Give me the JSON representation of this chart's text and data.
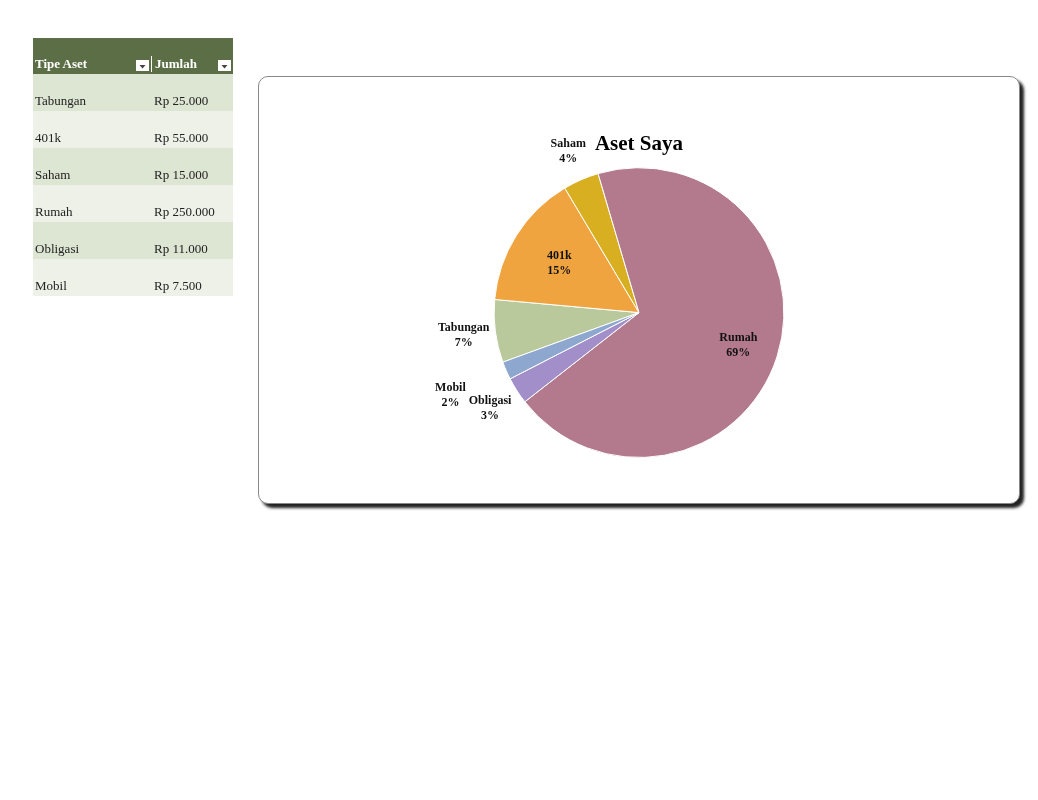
{
  "chart_data": [
    {
      "type": "other",
      "annotations": [
        "Tipe Aset",
        "Jumlah",
        "Tabungan",
        "Rp 25.000",
        "401k",
        "Rp 55.000",
        "Saham",
        "Rp 15.000",
        "Rumah",
        "Rp 250.000",
        "Obligasi",
        "Rp 11.000",
        "Mobil",
        "Rp 7.500"
      ]
    },
    {
      "type": "pie",
      "title": "Aset Saya",
      "categories": [
        "Tabungan",
        "401k",
        "Saham",
        "Rumah",
        "Obligasi",
        "Mobil"
      ],
      "values": [
        7,
        15,
        4,
        69,
        3,
        2
      ],
      "value_labels": [
        "7%",
        "15%",
        "4%",
        "69%",
        "3%",
        "2%"
      ],
      "colors": [
        "#b9c99c",
        "#f0a440",
        "#d9af22",
        "#b27a8c",
        "#a28ec9",
        "#8ea7cf"
      ],
      "legend": false
    }
  ]
}
